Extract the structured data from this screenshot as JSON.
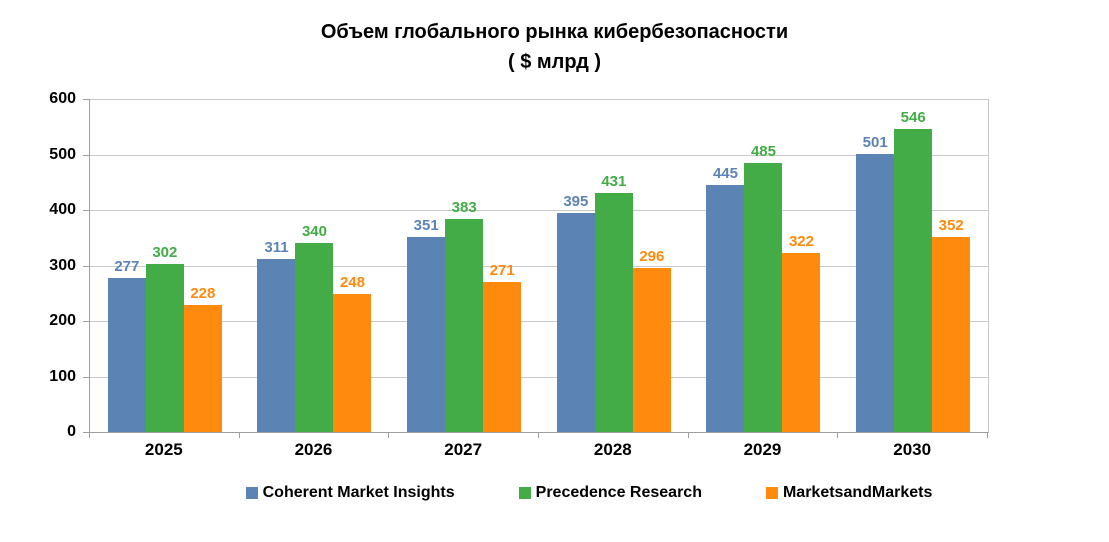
{
  "title": {
    "line1": "Объем глобального рынка кибербезопасности",
    "line2": "( $ млрд )"
  },
  "chart_data": {
    "type": "bar",
    "title": "Объем глобального рынка кибербезопасности ( $ млрд )",
    "categories": [
      "2025",
      "2026",
      "2027",
      "2028",
      "2029",
      "2030"
    ],
    "series": [
      {
        "name": "Coherent Market Insights",
        "color": "#5B84B5",
        "values": [
          277,
          311,
          351,
          395,
          445,
          501
        ]
      },
      {
        "name": "Precedence Research",
        "color": "#43AC46",
        "values": [
          302,
          340,
          383,
          431,
          485,
          546
        ]
      },
      {
        "name": "MarketsandMarkets",
        "color": "#FF8A0D",
        "values": [
          228,
          248,
          271,
          296,
          322,
          352
        ]
      }
    ],
    "xlabel": "",
    "ylabel": "",
    "ylim": [
      0,
      600
    ],
    "yticks": [
      0,
      100,
      200,
      300,
      400,
      500,
      600
    ],
    "grid": true,
    "legend_position": "bottom",
    "data_labels": true
  },
  "colors": {
    "background": "#FFFFFF",
    "gridline": "#C9C9C9",
    "axis": "#9E9E9E",
    "title_text": "#000000"
  }
}
